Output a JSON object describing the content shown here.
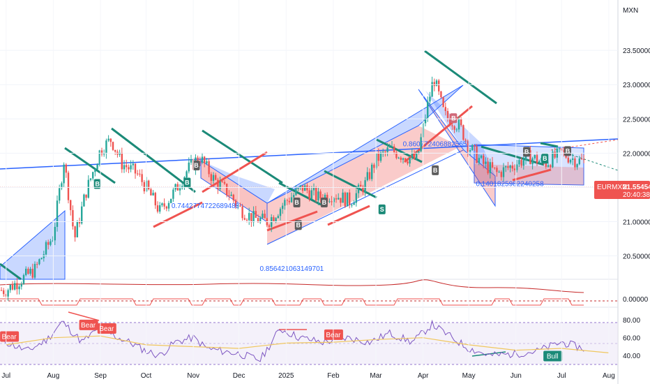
{
  "chart_data": {
    "type": "candlestick",
    "currency": "MXN",
    "symbol": "EURMXN",
    "last_price": "21.55454",
    "countdown": "20:40:38",
    "y_ticks": [
      "23.50000",
      "23.00000",
      "22.50000",
      "22.00000",
      "21.50000",
      "21.00000",
      "20.50000"
    ],
    "y_range": [
      20.2,
      23.95
    ],
    "x_ticks": [
      "Jul",
      "Aug",
      "Sep",
      "Oct",
      "Nov",
      "Dec",
      "2025",
      "Feb",
      "Mar",
      "Apr",
      "May",
      "Jun",
      "Jul",
      "Aug"
    ],
    "price_path": [
      [
        "2024-07-01",
        20.0
      ],
      [
        "2024-07-20",
        20.3
      ],
      [
        "2024-08-01",
        20.8
      ],
      [
        "2024-08-08",
        21.9
      ],
      [
        "2024-08-15",
        20.75
      ],
      [
        "2024-08-22",
        21.4
      ],
      [
        "2024-09-01",
        22.05
      ],
      [
        "2024-09-08",
        22.2
      ],
      [
        "2024-09-15",
        21.85
      ],
      [
        "2024-09-25",
        21.7
      ],
      [
        "2024-10-01",
        21.5
      ],
      [
        "2024-10-10",
        21.15
      ],
      [
        "2024-10-20",
        21.45
      ],
      [
        "2024-10-28",
        21.75
      ],
      [
        "2024-11-05",
        21.95
      ],
      [
        "2024-11-15",
        21.6
      ],
      [
        "2024-11-25",
        21.4
      ],
      [
        "2024-12-01",
        21.2
      ],
      [
        "2024-12-10",
        21.05
      ],
      [
        "2024-12-20",
        21.0
      ],
      [
        "2025-01-01",
        21.3
      ],
      [
        "2025-01-12",
        21.5
      ],
      [
        "2025-01-22",
        21.35
      ],
      [
        "2025-02-01",
        21.4
      ],
      [
        "2025-02-12",
        21.3
      ],
      [
        "2025-02-22",
        21.55
      ],
      [
        "2025-03-01",
        21.9
      ],
      [
        "2025-03-10",
        22.05
      ],
      [
        "2025-03-20",
        21.95
      ],
      [
        "2025-03-28",
        21.9
      ],
      [
        "2025-04-03",
        22.6
      ],
      [
        "2025-04-08",
        23.1
      ],
      [
        "2025-04-15",
        22.55
      ],
      [
        "2025-04-25",
        22.4
      ],
      [
        "2025-05-01",
        22.1
      ],
      [
        "2025-05-10",
        21.85
      ],
      [
        "2025-05-20",
        21.7
      ],
      [
        "2025-06-01",
        21.85
      ],
      [
        "2025-06-10",
        21.95
      ],
      [
        "2025-06-20",
        21.85
      ],
      [
        "2025-07-01",
        22.0
      ],
      [
        "2025-07-10",
        21.9
      ],
      [
        "2025-07-20",
        21.85
      ],
      [
        "2025-07-28",
        21.7
      ],
      [
        "2025-08-01",
        21.55
      ]
    ],
    "signals": [
      {
        "label": "B",
        "date": "2024-08-30",
        "price": 21.55,
        "type": "buy"
      },
      {
        "label": "B",
        "date": "2024-10-28",
        "price": 21.57,
        "type": "buy"
      },
      {
        "label": "B",
        "date": "2024-11-03",
        "price": 21.82,
        "type": "sell"
      },
      {
        "label": "B",
        "date": "2025-01-08",
        "price": 21.28,
        "type": "sell"
      },
      {
        "label": "B",
        "date": "2025-01-09",
        "price": 20.95,
        "type": "sell"
      },
      {
        "label": "B",
        "date": "2025-01-26",
        "price": 21.28,
        "type": "sell"
      },
      {
        "label": "S",
        "date": "2025-03-05",
        "price": 21.18,
        "type": "buy"
      },
      {
        "label": "B",
        "date": "2025-04-09",
        "price": 21.75,
        "type": "sell"
      },
      {
        "label": "B",
        "date": "2025-04-21",
        "price": 22.51,
        "type": "sell"
      },
      {
        "label": "B",
        "date": "2025-06-08",
        "price": 22.02,
        "type": "sell"
      },
      {
        "label": "B",
        "date": "2025-06-20",
        "price": 21.92,
        "type": "buy"
      },
      {
        "label": "B",
        "date": "2025-07-05",
        "price": 22.03,
        "type": "sell"
      }
    ],
    "annotations": [
      {
        "text": "0.7442774722689488",
        "date": "2024-11-05",
        "price": 21.2
      },
      {
        "text": "0.856421063149701",
        "date": "2025-01-02",
        "price": 20.28
      },
      {
        "text": "0.8607724068825651",
        "date": "2025-04-06",
        "price": 22.1
      },
      {
        "text": "0.1401825982240258",
        "date": "2025-05-24",
        "price": 21.52
      }
    ],
    "indicator2": {
      "label": "0.00000"
    },
    "rsi": {
      "ticks": [
        "80.00",
        "60.00",
        "40.00"
      ],
      "range": [
        30,
        88
      ],
      "path": [
        [
          "2024-07-01",
          55
        ],
        [
          "2024-07-15",
          45
        ],
        [
          "2024-07-28",
          58
        ],
        [
          "2024-08-07",
          78
        ],
        [
          "2024-08-20",
          55
        ],
        [
          "2024-09-01",
          72
        ],
        [
          "2024-09-10",
          62
        ],
        [
          "2024-09-20",
          55
        ],
        [
          "2024-10-01",
          45
        ],
        [
          "2024-10-10",
          40
        ],
        [
          "2024-10-20",
          55
        ],
        [
          "2024-11-01",
          60
        ],
        [
          "2024-11-10",
          48
        ],
        [
          "2024-11-20",
          45
        ],
        [
          "2024-12-01",
          42
        ],
        [
          "2024-12-15",
          35
        ],
        [
          "2024-12-28",
          70
        ],
        [
          "2025-01-10",
          60
        ],
        [
          "2025-01-25",
          55
        ],
        [
          "2025-02-10",
          60
        ],
        [
          "2025-02-25",
          55
        ],
        [
          "2025-03-10",
          65
        ],
        [
          "2025-03-25",
          55
        ],
        [
          "2025-04-07",
          75
        ],
        [
          "2025-04-20",
          60
        ],
        [
          "2025-05-01",
          48
        ],
        [
          "2025-05-15",
          40
        ],
        [
          "2025-06-01",
          42
        ],
        [
          "2025-06-15",
          45
        ],
        [
          "2025-07-01",
          55
        ],
        [
          "2025-07-15",
          48
        ],
        [
          "2025-07-25",
          42
        ],
        [
          "2025-08-01",
          33
        ]
      ],
      "ma_path": [
        [
          "2024-07-01",
          52
        ],
        [
          "2024-08-01",
          60
        ],
        [
          "2024-09-01",
          62
        ],
        [
          "2024-10-01",
          52
        ],
        [
          "2024-11-01",
          50
        ],
        [
          "2024-12-01",
          48
        ],
        [
          "2025-01-01",
          54
        ],
        [
          "2025-02-01",
          55
        ],
        [
          "2025-03-01",
          58
        ],
        [
          "2025-04-01",
          60
        ],
        [
          "2025-05-01",
          52
        ],
        [
          "2025-06-01",
          46
        ],
        [
          "2025-07-01",
          48
        ],
        [
          "2025-08-01",
          43
        ]
      ],
      "divergences": [
        {
          "label": "Bear",
          "date": "2024-07-03",
          "value": 61,
          "type": "bear"
        },
        {
          "label": "Bear",
          "date": "2024-08-24",
          "value": 74,
          "type": "bear"
        },
        {
          "label": "Bear",
          "date": "2024-09-05",
          "value": 70,
          "type": "bear"
        },
        {
          "label": "Bear",
          "date": "2025-02-01",
          "value": 63,
          "type": "bear"
        },
        {
          "label": "Bull",
          "date": "2025-06-25",
          "value": 39,
          "type": "bull"
        }
      ]
    }
  },
  "colors": {
    "up": "#26a69a",
    "down": "#ef5350",
    "blue": "#2962ff",
    "teal": "#1b8a78",
    "red_line": "#ef5350",
    "rsi": "#7e57c2",
    "rsi_ma": "#f0c75e"
  }
}
